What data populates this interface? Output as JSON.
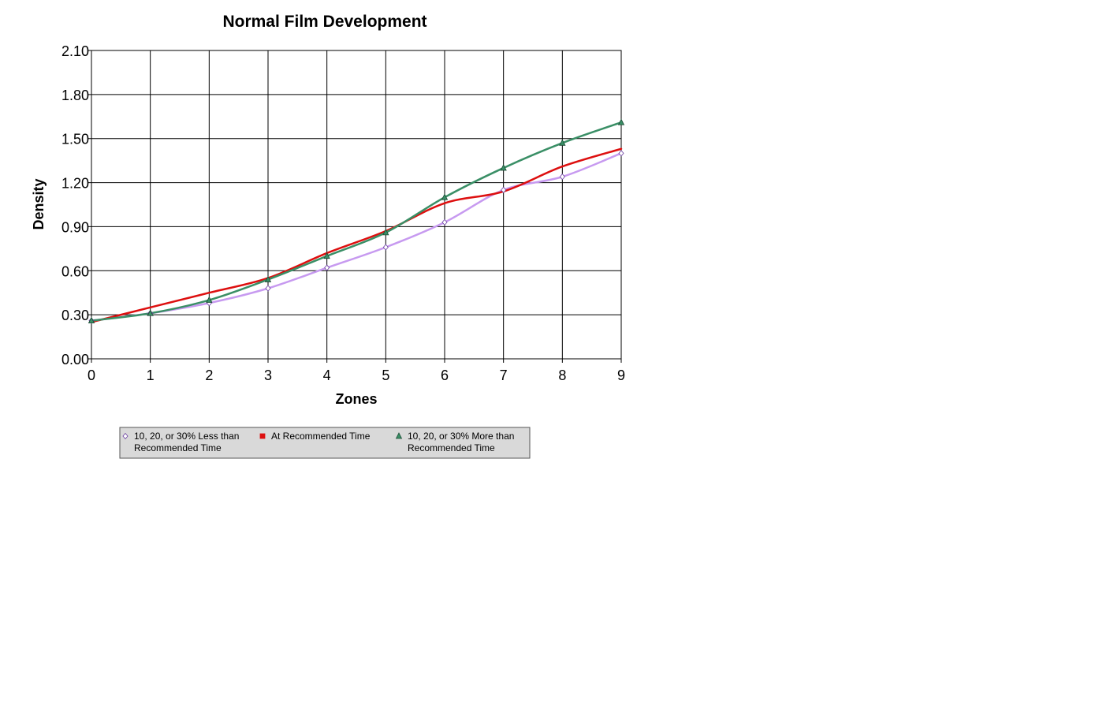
{
  "chart_data": {
    "type": "line",
    "title": "Normal Film Development",
    "xlabel": "Zones",
    "ylabel": "Density",
    "x": [
      0,
      1,
      2,
      3,
      4,
      5,
      6,
      7,
      8,
      9
    ],
    "xlim": [
      0,
      9
    ],
    "ylim": [
      0,
      2.1
    ],
    "x_ticks": [
      "0",
      "1",
      "2",
      "3",
      "4",
      "5",
      "6",
      "7",
      "8",
      "9"
    ],
    "y_ticks": [
      "0.00",
      "0.30",
      "0.60",
      "0.90",
      "1.20",
      "1.50",
      "1.80",
      "2.10"
    ],
    "grid": true,
    "legend_position": "bottom",
    "series": [
      {
        "name": "10, 20, or 30% Less than Recommended Time",
        "legend_lines": [
          "10, 20, or 30% Less than",
          "Recommended Time"
        ],
        "marker": "diamond",
        "color": "#c79af0",
        "marker_fill": "#ffffff",
        "marker_stroke": "#6a3fa0",
        "values": [
          0.26,
          0.31,
          0.38,
          0.48,
          0.62,
          0.76,
          0.93,
          1.15,
          1.24,
          1.4
        ]
      },
      {
        "name": "At Recommended Time",
        "legend_lines": [
          "At Recommended Time"
        ],
        "marker": "square",
        "color": "#dd0f0f",
        "marker_fill": "#dd0f0f",
        "marker_stroke": "#dd0f0f",
        "values": [
          0.25,
          0.35,
          0.45,
          0.55,
          0.72,
          0.87,
          1.06,
          1.14,
          1.31,
          1.43
        ]
      },
      {
        "name": "10, 20, or 30% More than Recommended Time",
        "legend_lines": [
          "10, 20, or 30% More than",
          "Recommended Time"
        ],
        "marker": "triangle",
        "color": "#3a8f66",
        "marker_fill": "#3a8f66",
        "marker_stroke": "#1a4a33",
        "values": [
          0.26,
          0.31,
          0.4,
          0.54,
          0.7,
          0.86,
          1.1,
          1.3,
          1.47,
          1.61
        ]
      }
    ]
  }
}
